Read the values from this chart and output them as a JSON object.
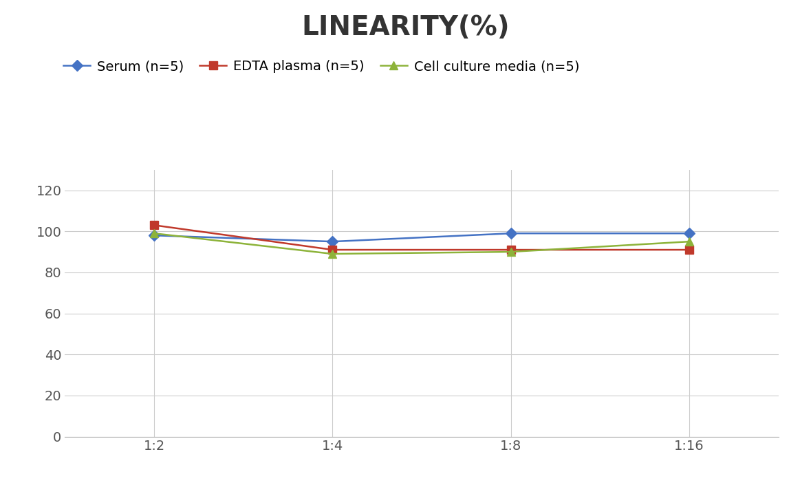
{
  "title": "LINEARITY(%)",
  "x_labels": [
    "1:2",
    "1:4",
    "1:8",
    "1:16"
  ],
  "x_positions": [
    0,
    1,
    2,
    3
  ],
  "series": [
    {
      "label": "Serum (n=5)",
      "values": [
        98,
        95,
        99,
        99
      ],
      "color": "#4472C4",
      "marker": "D",
      "markersize": 8,
      "linewidth": 1.8
    },
    {
      "label": "EDTA plasma (n=5)",
      "values": [
        103,
        91,
        91,
        91
      ],
      "color": "#C0392B",
      "marker": "s",
      "markersize": 8,
      "linewidth": 1.8
    },
    {
      "label": "Cell culture media (n=5)",
      "values": [
        99,
        89,
        90,
        95
      ],
      "color": "#8DB33A",
      "marker": "^",
      "markersize": 8,
      "linewidth": 1.8
    }
  ],
  "ylim": [
    0,
    130
  ],
  "yticks": [
    0,
    20,
    40,
    60,
    80,
    100,
    120
  ],
  "background_color": "#FFFFFF",
  "title_fontsize": 28,
  "tick_fontsize": 14,
  "legend_fontsize": 14,
  "grid_color": "#CCCCCC",
  "spine_color": "#AAAAAA"
}
